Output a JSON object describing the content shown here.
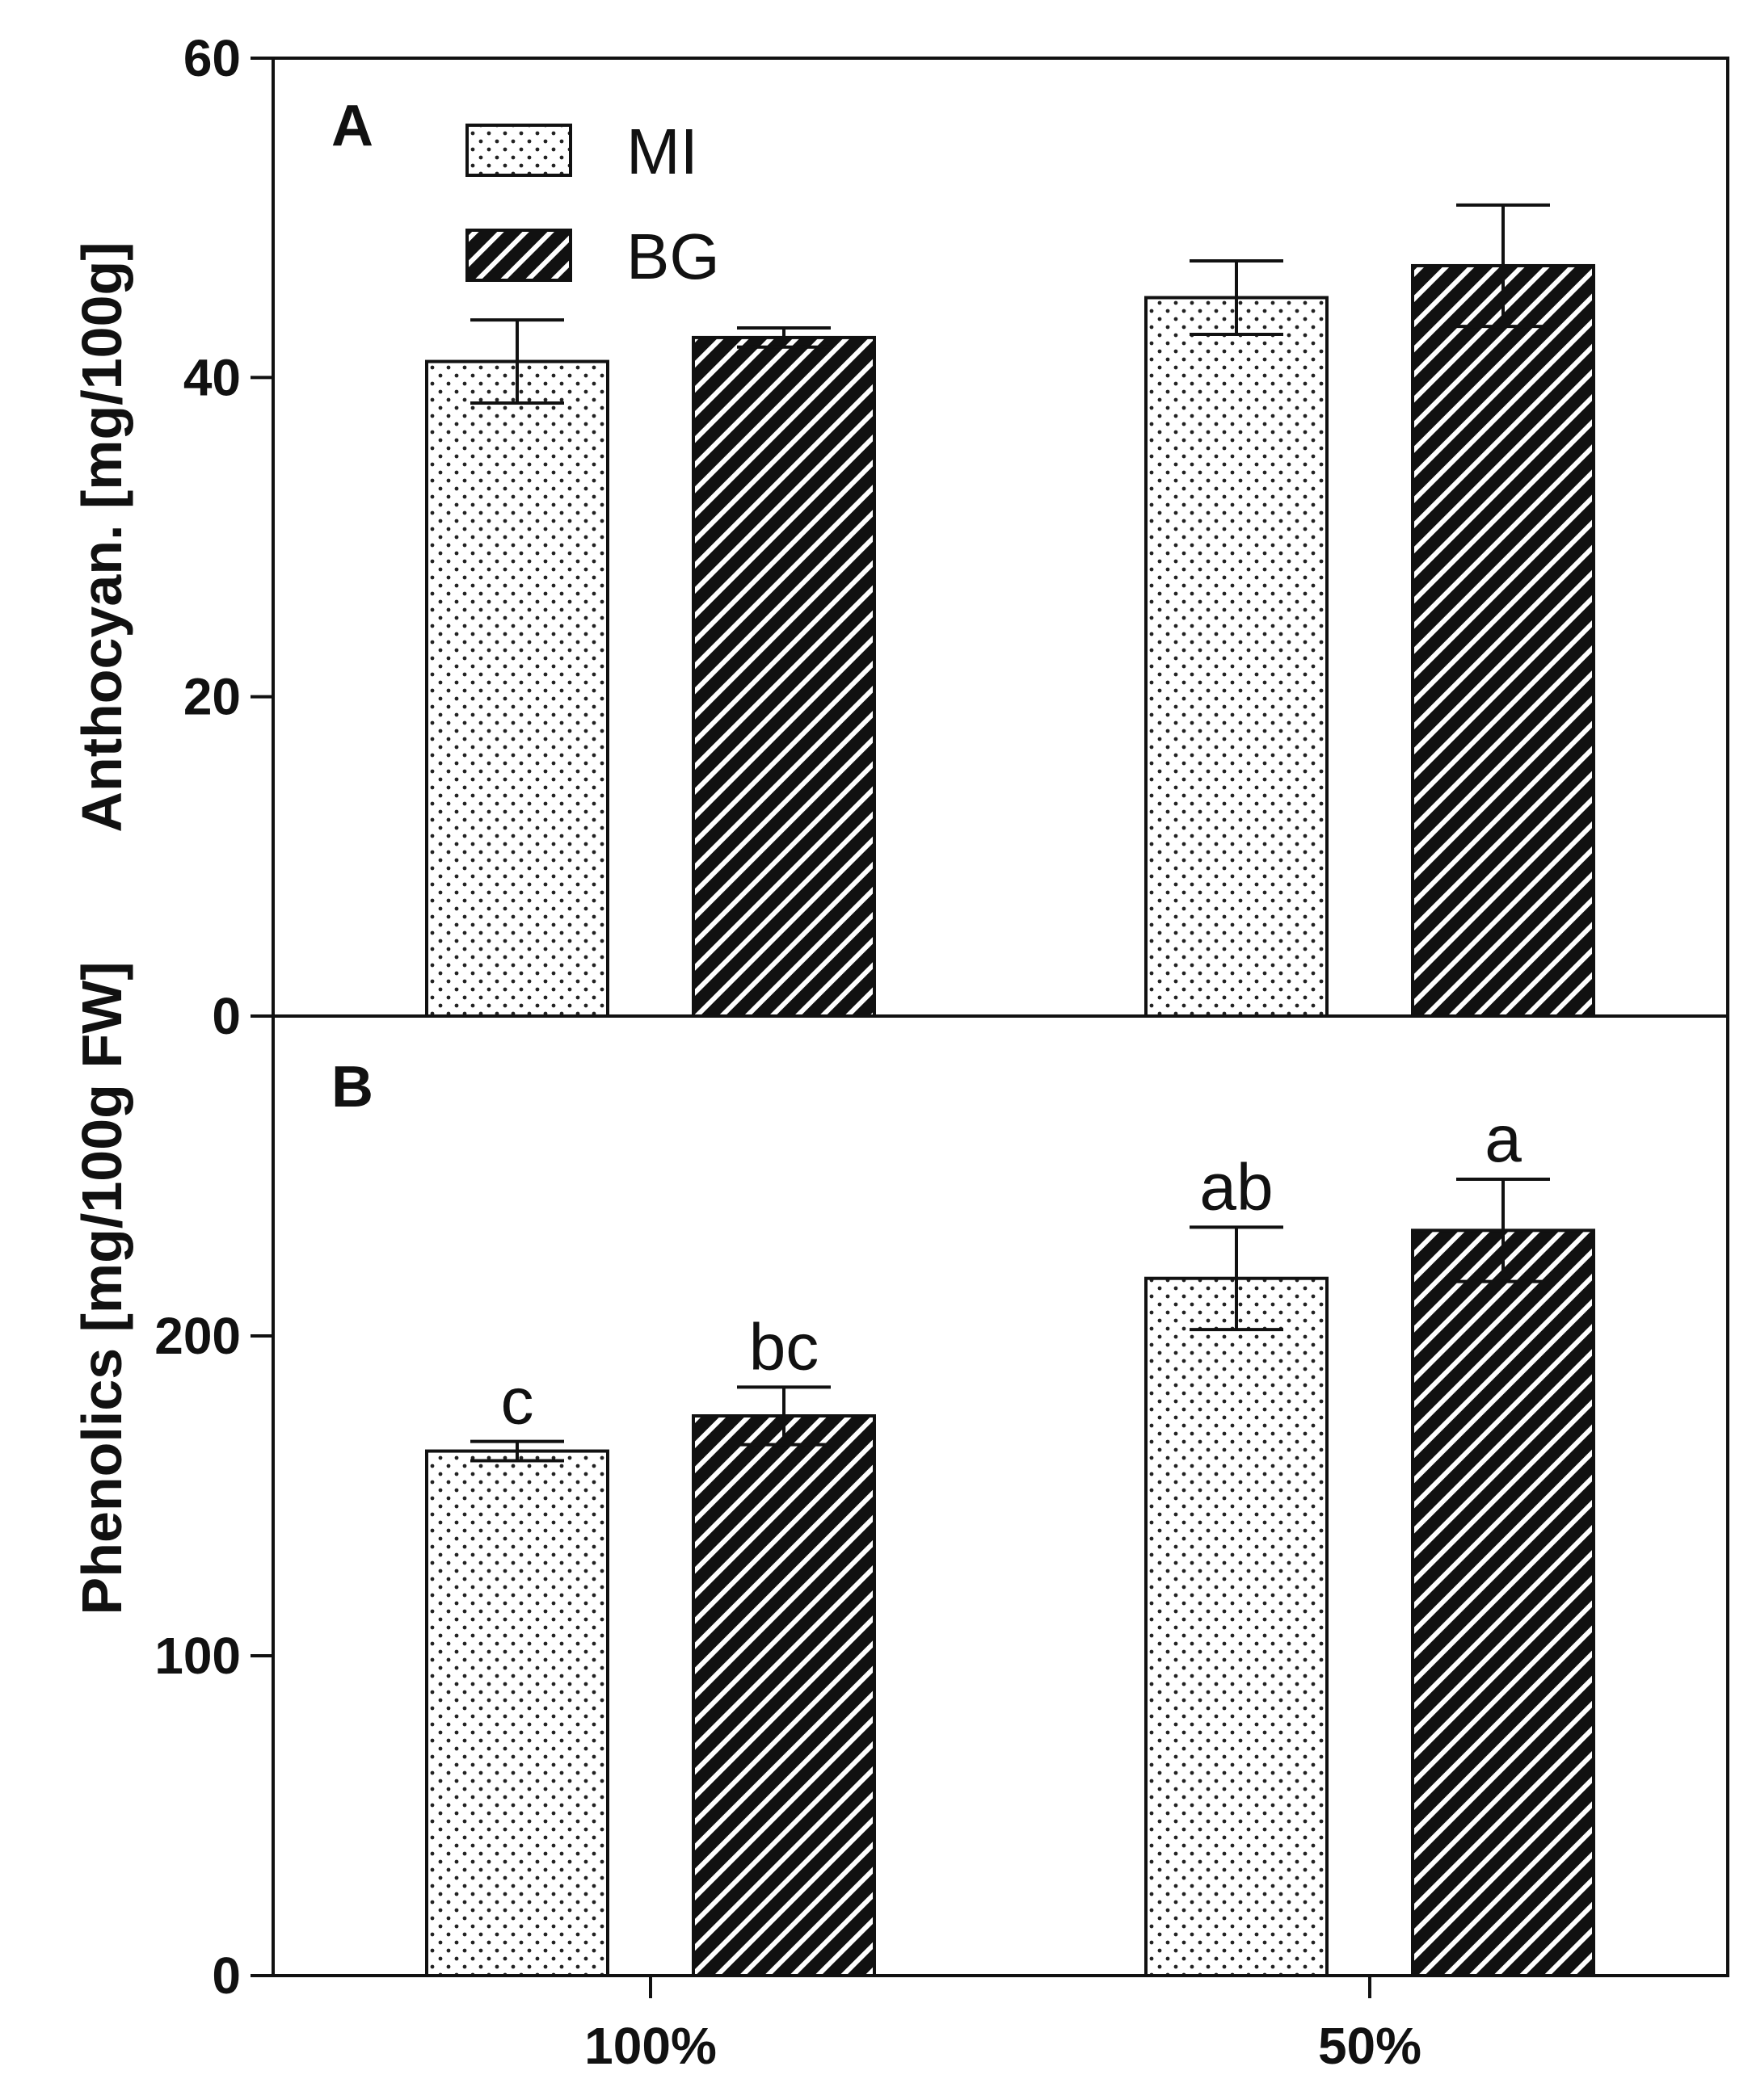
{
  "chart_data": [
    {
      "panel": "A",
      "type": "bar",
      "ylabel": "Anthocyan. [mg/100g]",
      "ylim": [
        0,
        60
      ],
      "yticks": [
        0,
        20,
        40,
        60
      ],
      "categories": [
        "100%",
        "50%"
      ],
      "series": [
        {
          "name": "MI",
          "pattern": "dots",
          "values": [
            41.0,
            45.0
          ],
          "errors": [
            2.6,
            2.3
          ],
          "sig_labels": [
            "",
            ""
          ]
        },
        {
          "name": "BG",
          "pattern": "hatch",
          "values": [
            42.5,
            47.0
          ],
          "errors": [
            0.6,
            3.8
          ],
          "sig_labels": [
            "",
            ""
          ]
        }
      ]
    },
    {
      "panel": "B",
      "type": "bar",
      "ylabel": "Phenolics [mg/100g FW]",
      "ylim": [
        0,
        300
      ],
      "yticks": [
        0,
        100,
        200
      ],
      "categories": [
        "100%",
        "50%"
      ],
      "series": [
        {
          "name": "MI",
          "pattern": "dots",
          "values": [
            164,
            218
          ],
          "errors": [
            3,
            16
          ],
          "sig_labels": [
            "c",
            "ab"
          ]
        },
        {
          "name": "BG",
          "pattern": "hatch",
          "values": [
            175,
            233
          ],
          "errors": [
            9,
            16
          ],
          "sig_labels": [
            "bc",
            "a"
          ]
        }
      ]
    }
  ],
  "legend": [
    {
      "name": "MI",
      "pattern": "dots"
    },
    {
      "name": "BG",
      "pattern": "hatch"
    }
  ],
  "x_tick_labels": [
    "100%",
    "50%"
  ]
}
